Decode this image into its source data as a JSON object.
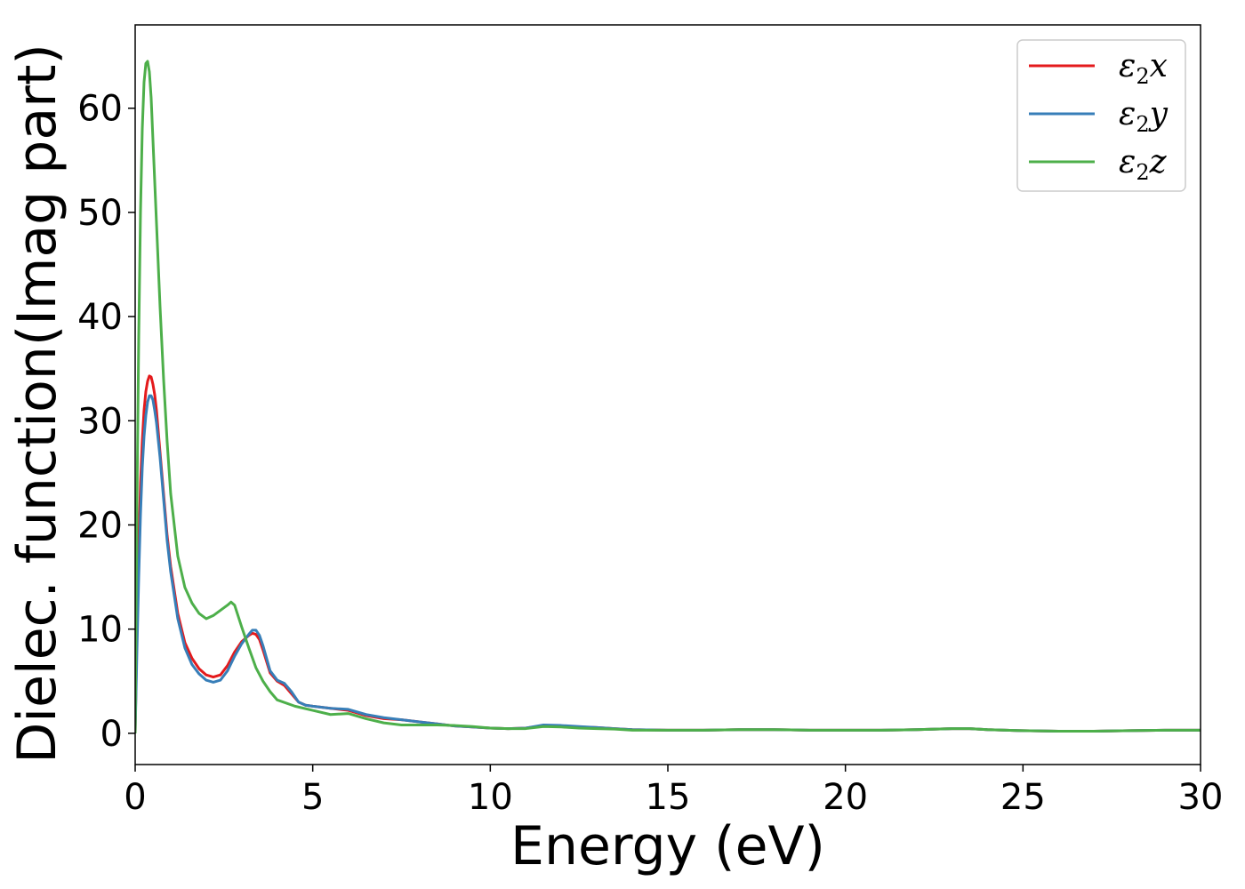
{
  "chart_data": {
    "type": "line",
    "title": "",
    "xlabel": "Energy (eV)",
    "ylabel": "Dielec. function(Imag part)",
    "xlim": [
      0,
      30
    ],
    "ylim": [
      -3,
      68
    ],
    "xticks": [
      0,
      5,
      10,
      15,
      20,
      25,
      30
    ],
    "yticks": [
      0,
      10,
      20,
      30,
      40,
      50,
      60
    ],
    "grid": false,
    "legend_position": "top-right",
    "series": [
      {
        "name": "ε₂x",
        "legend": {
          "base": "ε",
          "sub": "2",
          "var": "x"
        },
        "color": "#e41a1c",
        "x": [
          0,
          0.05,
          0.1,
          0.15,
          0.2,
          0.25,
          0.3,
          0.35,
          0.4,
          0.45,
          0.5,
          0.55,
          0.6,
          0.7,
          0.8,
          0.9,
          1.0,
          1.2,
          1.4,
          1.6,
          1.8,
          2.0,
          2.2,
          2.4,
          2.6,
          2.8,
          3.0,
          3.2,
          3.3,
          3.4,
          3.5,
          3.6,
          3.8,
          4.0,
          4.2,
          4.4,
          4.6,
          4.8,
          5.0,
          5.5,
          6.0,
          6.5,
          7.0,
          7.5,
          8.0,
          8.5,
          9.0,
          9.5,
          10.0,
          10.5,
          11.0,
          11.5,
          12.0,
          12.5,
          13.0,
          13.5,
          14.0,
          15.0,
          16.0,
          17.0,
          18.0,
          19.0,
          20.0,
          21.0,
          22.0,
          23.0,
          23.5,
          24.0,
          25.0,
          26.0,
          27.0,
          28.0,
          29.0,
          30.0
        ],
        "y": [
          0,
          10,
          18,
          24,
          28,
          31,
          32.8,
          33.8,
          34.3,
          34.2,
          33.5,
          32.5,
          31,
          27,
          23,
          19,
          16,
          11.5,
          8.7,
          7.2,
          6.2,
          5.6,
          5.4,
          5.6,
          6.5,
          7.8,
          8.8,
          9.4,
          9.6,
          9.5,
          9.0,
          8.0,
          5.8,
          5.0,
          4.6,
          3.8,
          3.0,
          2.7,
          2.6,
          2.4,
          2.2,
          1.7,
          1.4,
          1.3,
          1.1,
          0.9,
          0.7,
          0.6,
          0.5,
          0.45,
          0.5,
          0.75,
          0.7,
          0.6,
          0.55,
          0.45,
          0.35,
          0.3,
          0.3,
          0.35,
          0.35,
          0.3,
          0.3,
          0.3,
          0.35,
          0.45,
          0.45,
          0.35,
          0.25,
          0.2,
          0.2,
          0.25,
          0.3,
          0.3
        ]
      },
      {
        "name": "ε₂y",
        "legend": {
          "base": "ε",
          "sub": "2",
          "var": "y"
        },
        "color": "#377eb8",
        "x": [
          0,
          0.05,
          0.1,
          0.15,
          0.2,
          0.25,
          0.3,
          0.35,
          0.4,
          0.45,
          0.5,
          0.55,
          0.6,
          0.7,
          0.8,
          0.9,
          1.0,
          1.2,
          1.4,
          1.6,
          1.8,
          2.0,
          2.2,
          2.4,
          2.6,
          2.8,
          3.0,
          3.2,
          3.3,
          3.4,
          3.5,
          3.6,
          3.8,
          4.0,
          4.2,
          4.4,
          4.6,
          4.8,
          5.0,
          5.5,
          6.0,
          6.5,
          7.0,
          7.5,
          8.0,
          8.5,
          9.0,
          9.5,
          10.0,
          10.5,
          11.0,
          11.5,
          12.0,
          12.5,
          13.0,
          13.5,
          14.0,
          15.0,
          16.0,
          17.0,
          18.0,
          19.0,
          20.0,
          21.0,
          22.0,
          23.0,
          23.5,
          24.0,
          25.0,
          26.0,
          27.0,
          28.0,
          29.0,
          30.0
        ],
        "y": [
          0,
          8,
          15,
          21,
          25.5,
          28.5,
          30.5,
          31.8,
          32.4,
          32.4,
          32,
          31,
          29.8,
          26.5,
          22.5,
          18.5,
          15.5,
          11,
          8.2,
          6.6,
          5.7,
          5.1,
          4.9,
          5.1,
          6.0,
          7.4,
          8.6,
          9.5,
          9.9,
          9.9,
          9.4,
          8.4,
          6.0,
          5.1,
          4.8,
          4.0,
          3.0,
          2.7,
          2.6,
          2.4,
          2.3,
          1.8,
          1.5,
          1.3,
          1.1,
          0.9,
          0.7,
          0.6,
          0.5,
          0.45,
          0.5,
          0.8,
          0.75,
          0.65,
          0.55,
          0.45,
          0.35,
          0.3,
          0.3,
          0.35,
          0.35,
          0.3,
          0.3,
          0.3,
          0.35,
          0.45,
          0.45,
          0.35,
          0.25,
          0.2,
          0.2,
          0.25,
          0.3,
          0.3
        ]
      },
      {
        "name": "ε₂z",
        "legend": {
          "base": "ε",
          "sub": "2",
          "var": "z"
        },
        "color": "#4daf4a",
        "x": [
          0,
          0.05,
          0.1,
          0.15,
          0.2,
          0.25,
          0.3,
          0.35,
          0.4,
          0.45,
          0.5,
          0.6,
          0.7,
          0.8,
          0.9,
          1.0,
          1.2,
          1.4,
          1.6,
          1.8,
          2.0,
          2.2,
          2.4,
          2.6,
          2.7,
          2.8,
          3.0,
          3.2,
          3.4,
          3.6,
          3.8,
          4.0,
          4.5,
          5.0,
          5.5,
          6.0,
          6.5,
          7.0,
          7.5,
          8.0,
          8.5,
          9.0,
          9.5,
          10.0,
          10.5,
          11.0,
          11.5,
          12.0,
          12.5,
          13.0,
          13.5,
          14.0,
          15.0,
          16.0,
          17.0,
          18.0,
          19.0,
          20.0,
          21.0,
          22.0,
          23.0,
          23.5,
          24.0,
          25.0,
          26.0,
          27.0,
          28.0,
          29.0,
          30.0
        ],
        "y": [
          0,
          22,
          38,
          50,
          58,
          62.5,
          64.3,
          64.5,
          63.5,
          61,
          57,
          49,
          41,
          34,
          28,
          23,
          17,
          14,
          12.5,
          11.5,
          11.0,
          11.3,
          11.8,
          12.3,
          12.6,
          12.3,
          10.2,
          8.2,
          6.3,
          5.0,
          4.0,
          3.2,
          2.6,
          2.2,
          1.8,
          1.9,
          1.4,
          1.0,
          0.8,
          0.8,
          0.8,
          0.75,
          0.65,
          0.5,
          0.45,
          0.45,
          0.65,
          0.6,
          0.5,
          0.45,
          0.4,
          0.3,
          0.3,
          0.3,
          0.35,
          0.35,
          0.3,
          0.3,
          0.3,
          0.35,
          0.45,
          0.45,
          0.35,
          0.25,
          0.2,
          0.2,
          0.25,
          0.3,
          0.3
        ]
      }
    ]
  }
}
